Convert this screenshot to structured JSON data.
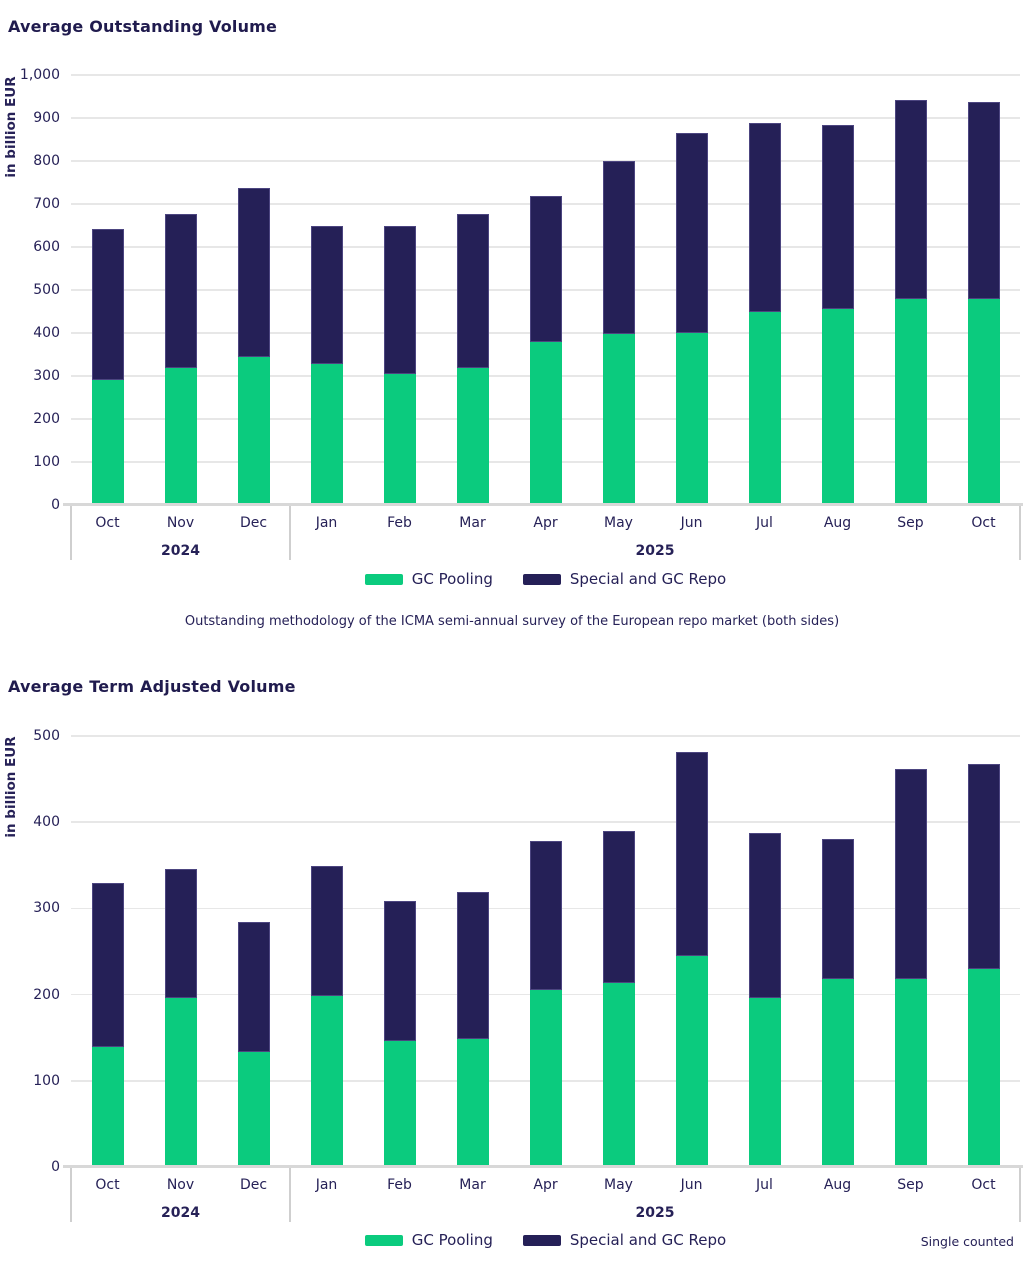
{
  "colors": {
    "gc_pooling_green": "#0bcb7e",
    "special_repo_navy": "#252057",
    "text_navy": "#262157",
    "gridline_gray": "#e7e7e7",
    "axis_gray": "#d8d8d8"
  },
  "chart_data": [
    {
      "type": "bar",
      "stacked": true,
      "title": "Average Outstanding Volume",
      "y_axis": {
        "label": "in billion EUR",
        "min": 0,
        "max": 1000,
        "step": 100
      },
      "categories": [
        "Oct",
        "Nov",
        "Dec",
        "Jan",
        "Feb",
        "Mar",
        "Apr",
        "May",
        "Jun",
        "Jul",
        "Aug",
        "Sep",
        "Oct"
      ],
      "year_groups": [
        {
          "label": "2024",
          "start": 0,
          "end": 2
        },
        {
          "label": "2025",
          "start": 3,
          "end": 12
        }
      ],
      "group_dividers": [
        0,
        3,
        13
      ],
      "series": [
        {
          "name": "GC Pooling",
          "color": "#0bcb7e",
          "values": [
            290,
            318,
            344,
            327,
            304,
            318,
            378,
            397,
            401,
            450,
            455,
            478,
            478
          ]
        },
        {
          "name": "Special and GC Repo",
          "color": "#252057",
          "values": [
            351,
            358,
            393,
            321,
            344,
            358,
            340,
            404,
            464,
            439,
            428,
            464,
            459
          ]
        }
      ],
      "totals": [
        641,
        676,
        737,
        648,
        648,
        676,
        718,
        801,
        865,
        889,
        883,
        942,
        937
      ],
      "legend_position": "bottom",
      "grid": true,
      "caption": "Outstanding methodology of the ICMA semi-annual survey of the European repo market (both sides)"
    },
    {
      "type": "bar",
      "stacked": true,
      "title": "Average Term Adjusted Volume",
      "y_axis": {
        "label": "in billion EUR",
        "min": 0,
        "max": 500,
        "step": 100
      },
      "categories": [
        "Oct",
        "Nov",
        "Dec",
        "Jan",
        "Feb",
        "Mar",
        "Apr",
        "May",
        "Jun",
        "Jul",
        "Aug",
        "Sep",
        "Oct"
      ],
      "year_groups": [
        {
          "label": "2024",
          "start": 0,
          "end": 2
        },
        {
          "label": "2025",
          "start": 3,
          "end": 12
        }
      ],
      "group_dividers": [
        0,
        3,
        13
      ],
      "series": [
        {
          "name": "GC Pooling",
          "color": "#0bcb7e",
          "values": [
            139,
            196,
            133,
            198,
            146,
            149,
            205,
            213,
            245,
            196,
            218,
            218,
            230
          ]
        },
        {
          "name": "Special and GC Repo",
          "color": "#252057",
          "values": [
            190,
            150,
            151,
            151,
            163,
            170,
            173,
            177,
            236,
            192,
            163,
            244,
            237
          ]
        }
      ],
      "totals": [
        329,
        346,
        284,
        349,
        309,
        319,
        378,
        390,
        481,
        388,
        381,
        462,
        467
      ],
      "legend_position": "bottom",
      "grid": true,
      "note": "Single counted"
    }
  ]
}
